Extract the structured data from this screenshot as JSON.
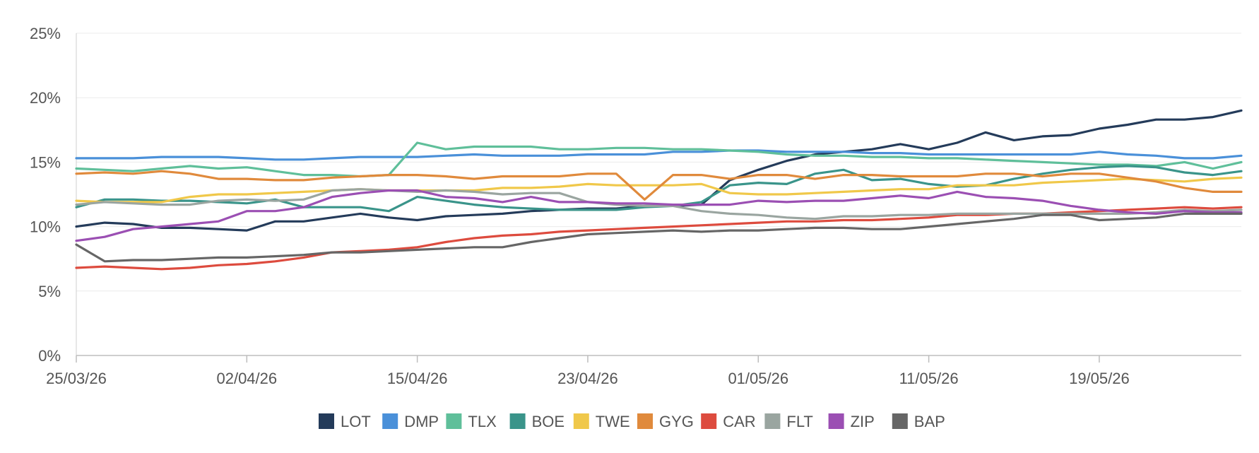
{
  "chart_data": {
    "type": "line",
    "x_tick_labels": [
      "25/03/26",
      "02/04/26",
      "15/04/26",
      "23/04/26",
      "01/05/26",
      "11/05/26",
      "19/05/26"
    ],
    "x_tick_index": [
      0,
      6,
      12,
      18,
      24,
      30,
      36
    ],
    "x_count": 42,
    "ylim": [
      0,
      25
    ],
    "y_ticks": [
      0,
      5,
      10,
      15,
      20,
      25
    ],
    "y_tick_labels": [
      "0%",
      "5%",
      "10%",
      "15%",
      "20%",
      "25%"
    ],
    "grid": true,
    "legend_position": "bottom",
    "series": [
      {
        "name": "LOT",
        "color": "#243b5a",
        "values": [
          10.0,
          10.3,
          10.2,
          9.9,
          9.9,
          9.8,
          9.7,
          10.4,
          10.4,
          10.7,
          11.0,
          10.7,
          10.5,
          10.8,
          10.9,
          11.0,
          11.2,
          11.3,
          11.4,
          11.4,
          11.6,
          11.6,
          11.7,
          13.6,
          14.4,
          15.1,
          15.6,
          15.8,
          16.0,
          16.4,
          16.0,
          16.5,
          17.3,
          16.7,
          17.0,
          17.1,
          17.6,
          17.9,
          18.3,
          18.3,
          18.5,
          19.0
        ]
      },
      {
        "name": "DMP",
        "color": "#4a90d9",
        "values": [
          15.3,
          15.3,
          15.3,
          15.4,
          15.4,
          15.4,
          15.3,
          15.2,
          15.2,
          15.3,
          15.4,
          15.4,
          15.4,
          15.5,
          15.6,
          15.5,
          15.5,
          15.5,
          15.6,
          15.6,
          15.6,
          15.8,
          15.8,
          15.9,
          15.9,
          15.8,
          15.8,
          15.8,
          15.7,
          15.7,
          15.6,
          15.6,
          15.6,
          15.6,
          15.6,
          15.6,
          15.8,
          15.6,
          15.5,
          15.3,
          15.3,
          15.5
        ]
      },
      {
        "name": "TLX",
        "color": "#5fbf9a",
        "values": [
          14.5,
          14.4,
          14.3,
          14.5,
          14.7,
          14.5,
          14.6,
          14.3,
          14.0,
          14.0,
          13.9,
          14.0,
          16.5,
          16.0,
          16.2,
          16.2,
          16.2,
          16.0,
          16.0,
          16.1,
          16.1,
          16.0,
          16.0,
          15.9,
          15.8,
          15.6,
          15.5,
          15.5,
          15.4,
          15.4,
          15.3,
          15.3,
          15.2,
          15.1,
          15.0,
          14.9,
          14.8,
          14.8,
          14.7,
          15.0,
          14.5,
          15.0
        ]
      },
      {
        "name": "BOE",
        "color": "#3a948a",
        "values": [
          11.5,
          12.1,
          12.1,
          12.0,
          12.0,
          11.9,
          11.8,
          12.1,
          11.5,
          11.5,
          11.5,
          11.2,
          12.3,
          12.0,
          11.7,
          11.5,
          11.4,
          11.3,
          11.3,
          11.3,
          11.5,
          11.6,
          11.9,
          13.2,
          13.4,
          13.3,
          14.1,
          14.4,
          13.6,
          13.7,
          13.3,
          13.1,
          13.2,
          13.7,
          14.1,
          14.4,
          14.6,
          14.7,
          14.6,
          14.2,
          14.0,
          14.3
        ]
      },
      {
        "name": "TWE",
        "color": "#f0c84a",
        "values": [
          12.0,
          11.9,
          11.9,
          11.9,
          12.3,
          12.5,
          12.5,
          12.6,
          12.7,
          12.8,
          12.9,
          12.8,
          12.8,
          12.8,
          12.8,
          13.0,
          13.0,
          13.1,
          13.3,
          13.2,
          13.2,
          13.2,
          13.3,
          12.6,
          12.5,
          12.5,
          12.6,
          12.7,
          12.8,
          12.9,
          12.9,
          13.2,
          13.2,
          13.2,
          13.4,
          13.5,
          13.6,
          13.7,
          13.6,
          13.5,
          13.7,
          13.8
        ]
      },
      {
        "name": "GYG",
        "color": "#e08a3c",
        "values": [
          14.1,
          14.2,
          14.1,
          14.3,
          14.1,
          13.7,
          13.7,
          13.6,
          13.6,
          13.8,
          13.9,
          14.0,
          14.0,
          13.9,
          13.7,
          13.9,
          13.9,
          13.9,
          14.1,
          14.1,
          12.1,
          14.0,
          14.0,
          13.7,
          14.0,
          14.0,
          13.7,
          14.0,
          14.0,
          13.9,
          13.9,
          13.9,
          14.1,
          14.1,
          13.9,
          14.1,
          14.1,
          13.8,
          13.5,
          13.0,
          12.7,
          12.7
        ]
      },
      {
        "name": "CAR",
        "color": "#dd4b3e",
        "values": [
          6.8,
          6.9,
          6.8,
          6.7,
          6.8,
          7.0,
          7.1,
          7.3,
          7.6,
          8.0,
          8.1,
          8.2,
          8.4,
          8.8,
          9.1,
          9.3,
          9.4,
          9.6,
          9.7,
          9.8,
          9.9,
          10.0,
          10.1,
          10.2,
          10.3,
          10.4,
          10.4,
          10.5,
          10.5,
          10.6,
          10.7,
          10.9,
          10.9,
          11.0,
          11.0,
          11.1,
          11.2,
          11.3,
          11.4,
          11.5,
          11.4,
          11.5
        ]
      },
      {
        "name": "FLT",
        "color": "#9aa5a0",
        "values": [
          11.7,
          11.9,
          11.8,
          11.7,
          11.7,
          12.0,
          12.1,
          12.0,
          12.1,
          12.8,
          12.9,
          12.8,
          12.7,
          12.8,
          12.7,
          12.5,
          12.6,
          12.6,
          11.9,
          11.7,
          11.6,
          11.6,
          11.2,
          11.0,
          10.9,
          10.7,
          10.6,
          10.8,
          10.8,
          10.9,
          10.9,
          11.0,
          11.0,
          11.0,
          11.0,
          11.0,
          11.0,
          11.0,
          11.1,
          11.3,
          11.2,
          11.3
        ]
      },
      {
        "name": "ZIP",
        "color": "#9b4fb3",
        "values": [
          8.9,
          9.2,
          9.8,
          10.0,
          10.2,
          10.4,
          11.2,
          11.2,
          11.5,
          12.3,
          12.6,
          12.8,
          12.8,
          12.3,
          12.2,
          11.9,
          12.3,
          11.9,
          11.9,
          11.8,
          11.8,
          11.7,
          11.7,
          11.7,
          12.0,
          11.9,
          12.0,
          12.0,
          12.2,
          12.4,
          12.2,
          12.7,
          12.3,
          12.2,
          12.0,
          11.6,
          11.3,
          11.1,
          11.0,
          11.2,
          11.1,
          11.1
        ]
      },
      {
        "name": "BAP",
        "color": "#666666",
        "values": [
          8.6,
          7.3,
          7.4,
          7.4,
          7.5,
          7.6,
          7.6,
          7.7,
          7.8,
          8.0,
          8.0,
          8.1,
          8.2,
          8.3,
          8.4,
          8.4,
          8.8,
          9.1,
          9.4,
          9.5,
          9.6,
          9.7,
          9.6,
          9.7,
          9.7,
          9.8,
          9.9,
          9.9,
          9.8,
          9.8,
          10.0,
          10.2,
          10.4,
          10.6,
          10.9,
          10.9,
          10.5,
          10.6,
          10.7,
          11.0,
          11.0,
          11.0
        ]
      }
    ]
  }
}
